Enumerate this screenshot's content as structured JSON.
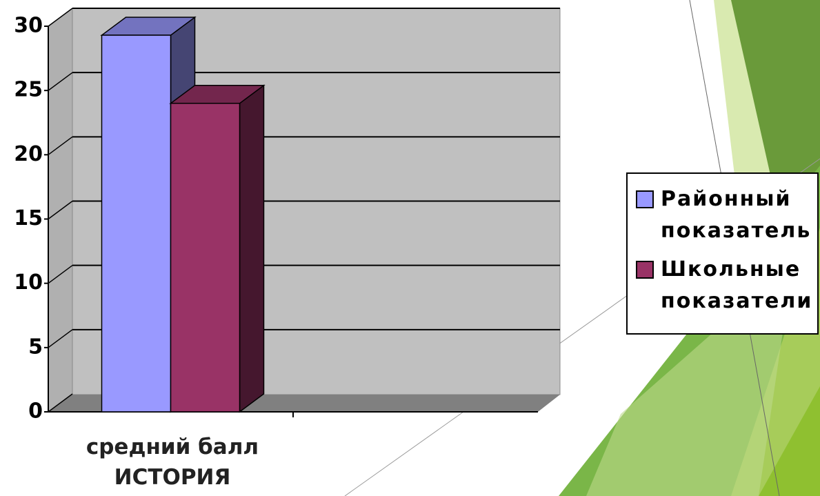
{
  "chart_data": {
    "type": "bar3d",
    "categories": [
      "средний балл ИСТОРИЯ",
      null
    ],
    "series": [
      {
        "name": "Районный показатель",
        "color": "#9999ff",
        "values": [
          29.3,
          null
        ]
      },
      {
        "name": "Школьные показатели",
        "color": "#993366",
        "values": [
          24,
          null
        ]
      }
    ],
    "ylim": [
      0,
      30
    ],
    "yticks": [
      0,
      5,
      10,
      15,
      20,
      25,
      30
    ],
    "grid": true,
    "legend": "right"
  }
}
